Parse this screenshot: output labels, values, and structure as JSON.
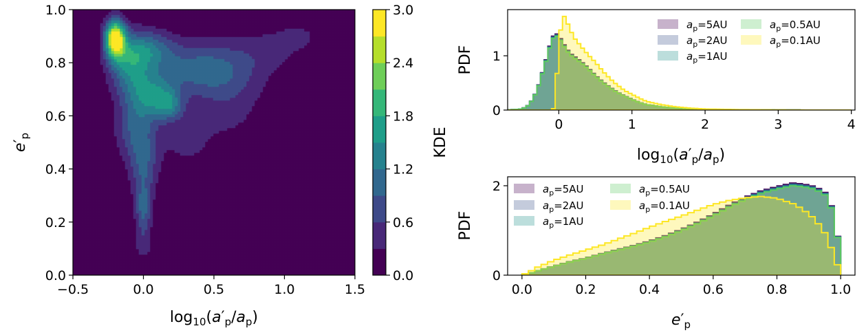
{
  "colors": {
    "5AU": "#440154",
    "2AU": "#3b528b",
    "1AU": "#21918c",
    "0.5AU": "#5ec962",
    "0.1AU": "#fde725"
  },
  "chart_data": [
    {
      "type": "contour",
      "xlabel": "log10(a′p/ap)",
      "ylabel": "e′p",
      "xlim": [
        -0.5,
        1.5
      ],
      "ylim": [
        0.0,
        1.0
      ],
      "xticks": [
        "−0.5",
        "0.0",
        "0.5",
        "1.0",
        "1.5"
      ],
      "yticks": [
        "0.0",
        "0.2",
        "0.4",
        "0.6",
        "0.8",
        "1.0"
      ],
      "colorbar": {
        "label": "KDE",
        "range": [
          0.0,
          3.0
        ],
        "ticks": [
          "0.0",
          "0.6",
          "1.2",
          "1.8",
          "2.4",
          "3.0"
        ],
        "levels": [
          0.0,
          0.3,
          0.6,
          0.9,
          1.2,
          1.5,
          1.8,
          2.1,
          2.4,
          2.7,
          3.0
        ],
        "level_colors": [
          "#440154",
          "#482878",
          "#3e4a89",
          "#31688e",
          "#26828e",
          "#1f9e89",
          "#35b779",
          "#6ece58",
          "#b5de2b",
          "#fde725"
        ]
      },
      "density_peak": {
        "x": -0.2,
        "y": 0.89,
        "level": 2.7
      }
    },
    {
      "type": "histogram",
      "xlabel": "log10(a′p/ap)",
      "ylabel": "PDF",
      "xlim": [
        -0.7,
        4.05
      ],
      "ylim": [
        0,
        1.85
      ],
      "xticks": [
        "0",
        "1",
        "2",
        "3",
        "4"
      ],
      "yticks": [
        "0",
        "1"
      ],
      "legend_loc": "top-right",
      "series": [
        {
          "name": "ap=5AU",
          "key": "5AU"
        },
        {
          "name": "ap=2AU",
          "key": "2AU"
        },
        {
          "name": "ap=1AU",
          "key": "1AU"
        },
        {
          "name": "ap=0.5AU",
          "key": "0.5AU"
        },
        {
          "name": "ap=0.1AU",
          "key": "0.1AU"
        }
      ],
      "curves": {
        "wide": [
          [
            -0.7,
            0
          ],
          [
            -0.5,
            0.02
          ],
          [
            -0.4,
            0.1
          ],
          [
            -0.3,
            0.35
          ],
          [
            -0.2,
            0.8
          ],
          [
            -0.1,
            1.3
          ],
          [
            -0.05,
            1.42
          ],
          [
            0.0,
            1.38
          ],
          [
            0.05,
            1.25
          ],
          [
            0.1,
            1.15
          ],
          [
            0.15,
            1.05
          ],
          [
            0.2,
            1.0
          ],
          [
            0.3,
            0.9
          ],
          [
            0.4,
            0.78
          ],
          [
            0.5,
            0.64
          ],
          [
            0.6,
            0.52
          ],
          [
            0.7,
            0.42
          ],
          [
            0.8,
            0.33
          ],
          [
            0.9,
            0.26
          ],
          [
            1.0,
            0.2
          ],
          [
            1.1,
            0.14
          ],
          [
            1.2,
            0.1
          ],
          [
            1.4,
            0.06
          ],
          [
            1.6,
            0.035
          ],
          [
            1.8,
            0.02
          ],
          [
            2.0,
            0.012
          ],
          [
            2.5,
            0.005
          ],
          [
            3.0,
            0.002
          ],
          [
            3.5,
            0.0
          ]
        ],
        "narrow": [
          [
            -0.7,
            0
          ],
          [
            -0.1,
            0
          ],
          [
            -0.05,
            0.05
          ],
          [
            0.0,
            1.3
          ],
          [
            0.05,
            1.65
          ],
          [
            0.08,
            1.74
          ],
          [
            0.12,
            1.6
          ],
          [
            0.2,
            1.35
          ],
          [
            0.3,
            1.18
          ],
          [
            0.4,
            1.02
          ],
          [
            0.5,
            0.88
          ],
          [
            0.6,
            0.72
          ],
          [
            0.7,
            0.58
          ],
          [
            0.8,
            0.46
          ],
          [
            0.9,
            0.36
          ],
          [
            1.0,
            0.29
          ],
          [
            1.1,
            0.22
          ],
          [
            1.2,
            0.16
          ],
          [
            1.4,
            0.1
          ],
          [
            1.6,
            0.06
          ],
          [
            1.8,
            0.035
          ],
          [
            2.0,
            0.02
          ],
          [
            2.5,
            0.008
          ],
          [
            3.0,
            0.003
          ],
          [
            3.5,
            0.0
          ]
        ]
      }
    },
    {
      "type": "histogram",
      "xlabel": "e′p",
      "ylabel": "PDF",
      "xlim": [
        -0.045,
        1.045
      ],
      "ylim": [
        0,
        2.2
      ],
      "xticks": [
        "0.0",
        "0.2",
        "0.4",
        "0.6",
        "0.8",
        "1.0"
      ],
      "yticks": [
        "0",
        "2"
      ],
      "legend_loc": "top-left",
      "series": [
        {
          "name": "ap=5AU",
          "key": "5AU"
        },
        {
          "name": "ap=2AU",
          "key": "2AU"
        },
        {
          "name": "ap=1AU",
          "key": "1AU"
        },
        {
          "name": "ap=0.5AU",
          "key": "0.5AU"
        },
        {
          "name": "ap=0.1AU",
          "key": "0.1AU"
        }
      ],
      "curves": {
        "wide": [
          [
            0.0,
            0
          ],
          [
            0.02,
            0.03
          ],
          [
            0.05,
            0.1
          ],
          [
            0.1,
            0.2
          ],
          [
            0.15,
            0.3
          ],
          [
            0.2,
            0.38
          ],
          [
            0.25,
            0.48
          ],
          [
            0.3,
            0.57
          ],
          [
            0.35,
            0.66
          ],
          [
            0.4,
            0.76
          ],
          [
            0.45,
            0.88
          ],
          [
            0.5,
            1.02
          ],
          [
            0.55,
            1.18
          ],
          [
            0.6,
            1.36
          ],
          [
            0.65,
            1.56
          ],
          [
            0.7,
            1.74
          ],
          [
            0.75,
            1.88
          ],
          [
            0.8,
            1.98
          ],
          [
            0.85,
            2.06
          ],
          [
            0.88,
            2.04
          ],
          [
            0.92,
            1.98
          ],
          [
            0.95,
            1.85
          ],
          [
            0.97,
            1.55
          ],
          [
            0.985,
            1.3
          ],
          [
            1.0,
            0
          ]
        ],
        "narrow": [
          [
            0.0,
            0
          ],
          [
            0.02,
            0.06
          ],
          [
            0.05,
            0.18
          ],
          [
            0.1,
            0.33
          ],
          [
            0.15,
            0.45
          ],
          [
            0.2,
            0.56
          ],
          [
            0.25,
            0.67
          ],
          [
            0.3,
            0.8
          ],
          [
            0.35,
            0.93
          ],
          [
            0.4,
            1.07
          ],
          [
            0.45,
            1.2
          ],
          [
            0.5,
            1.32
          ],
          [
            0.55,
            1.45
          ],
          [
            0.6,
            1.58
          ],
          [
            0.65,
            1.67
          ],
          [
            0.7,
            1.73
          ],
          [
            0.75,
            1.76
          ],
          [
            0.8,
            1.72
          ],
          [
            0.85,
            1.6
          ],
          [
            0.88,
            1.48
          ],
          [
            0.92,
            1.25
          ],
          [
            0.95,
            0.95
          ],
          [
            0.97,
            0.62
          ],
          [
            0.985,
            0.35
          ],
          [
            1.0,
            0
          ]
        ]
      }
    }
  ]
}
